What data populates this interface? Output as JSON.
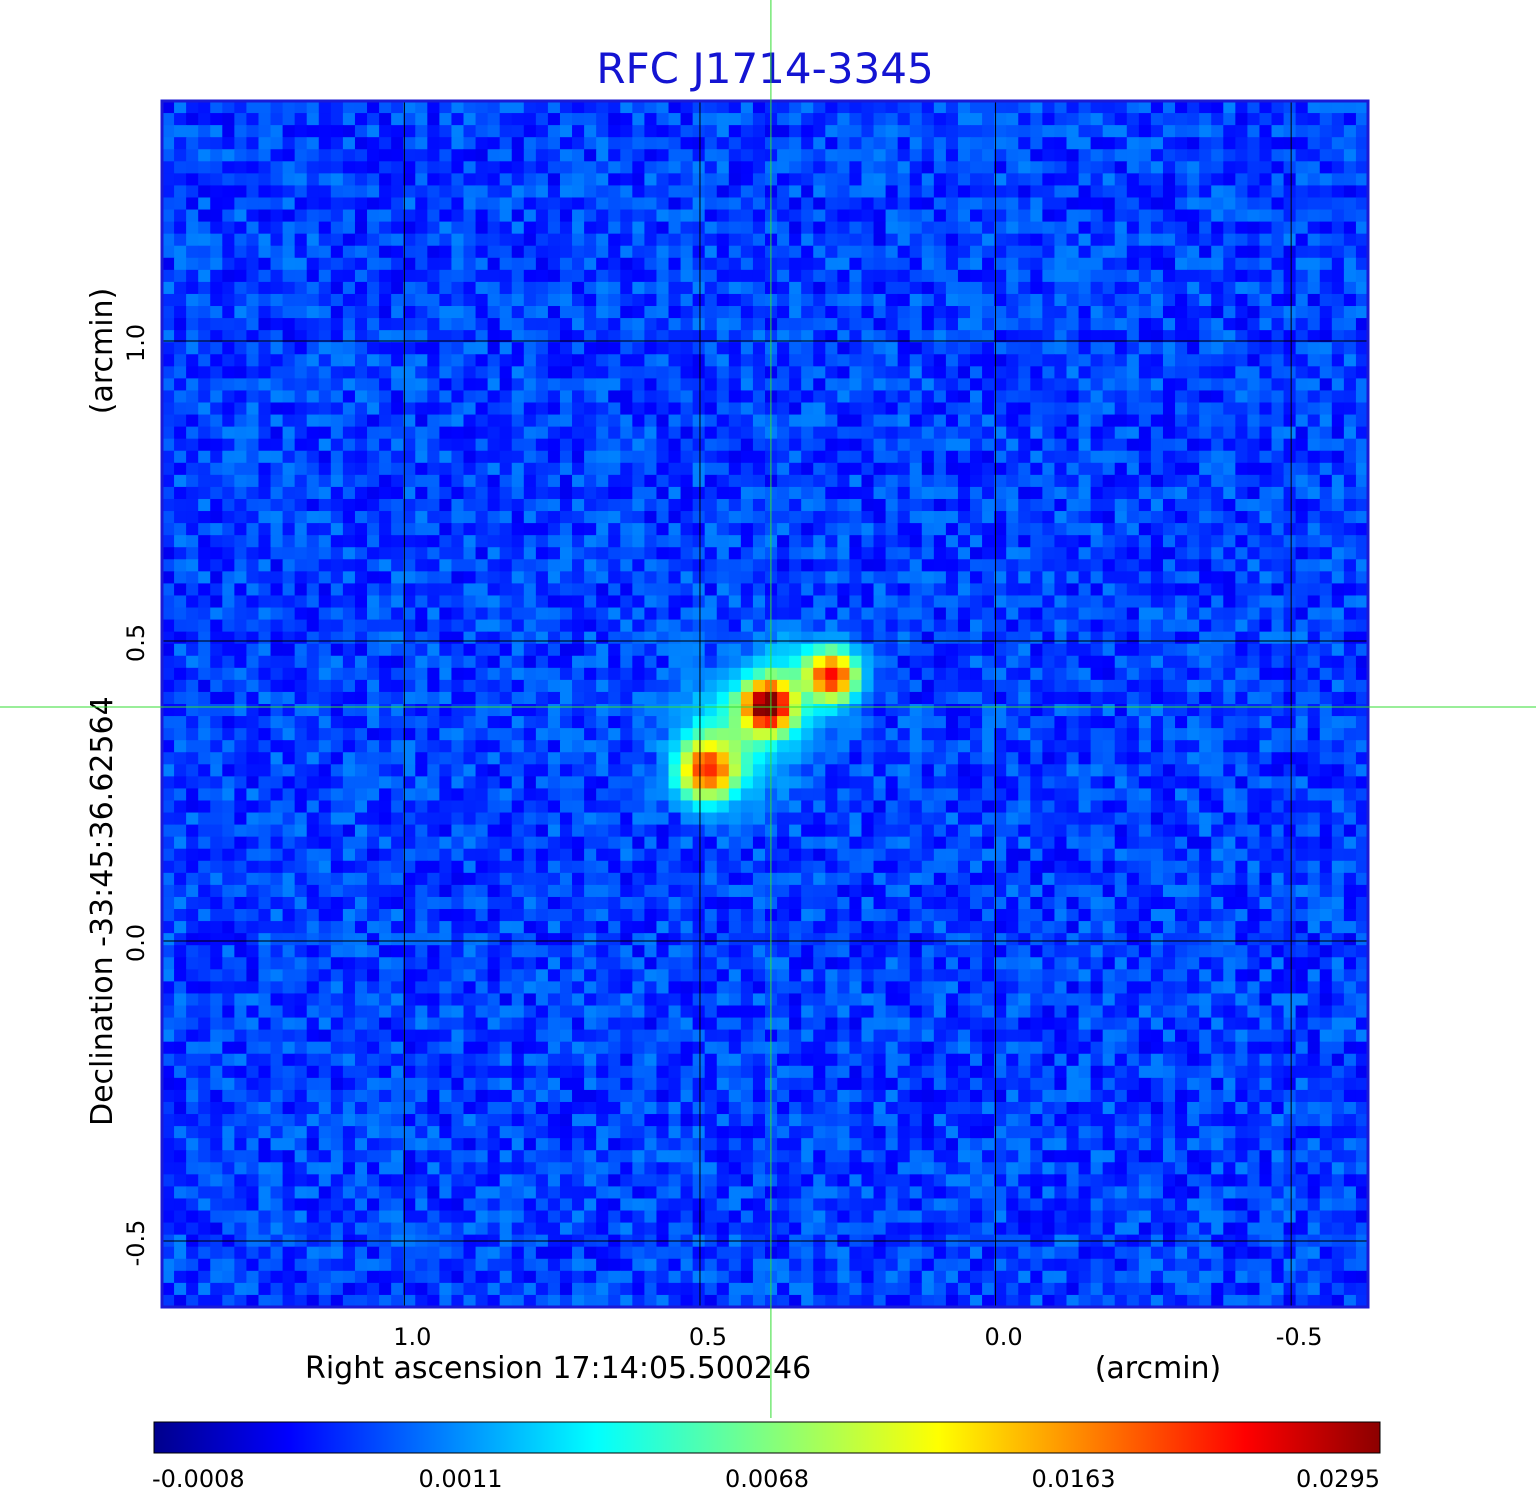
{
  "chart_data": {
    "type": "heatmap",
    "title": "RFC J1714-3345",
    "xlabel": "Right ascension  17:14:05.500246",
    "xunit": "(arcmin)",
    "ylabel": "Declination  -33:45:36.62564",
    "yunit": "(arcmin)",
    "xlim": [
      1.41,
      -0.63
    ],
    "ylim": [
      -0.61,
      1.4
    ],
    "x_ticks": [
      {
        "value": 1.0,
        "label": "1.0"
      },
      {
        "value": 0.5,
        "label": "0.5"
      },
      {
        "value": 0.0,
        "label": "0.0"
      },
      {
        "value": -0.5,
        "label": "-0.5"
      }
    ],
    "y_ticks": [
      {
        "value": 1.0,
        "label": "1.0"
      },
      {
        "value": 0.5,
        "label": "0.5"
      },
      {
        "value": 0.0,
        "label": "0.0"
      },
      {
        "value": -0.5,
        "label": "-0.5"
      }
    ],
    "grid": true,
    "crosshair": {
      "x": 0.38,
      "y": 0.39,
      "color": "#33dd33"
    },
    "colorbar": {
      "colormap": "jet",
      "orientation": "horizontal",
      "ticks": [
        {
          "label": "-0.0008",
          "frac": 0.0
        },
        {
          "label": "0.0011",
          "frac": 0.25
        },
        {
          "label": "0.0068",
          "frac": 0.5
        },
        {
          "label": "0.0163",
          "frac": 0.75
        },
        {
          "label": "0.0295",
          "frac": 1.0
        }
      ]
    },
    "background_level": 0.0006,
    "sources": [
      {
        "x": 0.385,
        "y": 0.392,
        "peak": 0.0295,
        "sigma": 0.026
      },
      {
        "x": 0.277,
        "y": 0.442,
        "peak": 0.0205,
        "sigma": 0.026
      },
      {
        "x": 0.488,
        "y": 0.285,
        "peak": 0.0185,
        "sigma": 0.03
      }
    ],
    "extended_emission": [
      {
        "x": 0.44,
        "y": 0.34,
        "peak": 0.0045,
        "sigma": 0.06
      },
      {
        "x": 0.34,
        "y": 0.43,
        "peak": 0.003,
        "sigma": 0.05
      }
    ]
  }
}
